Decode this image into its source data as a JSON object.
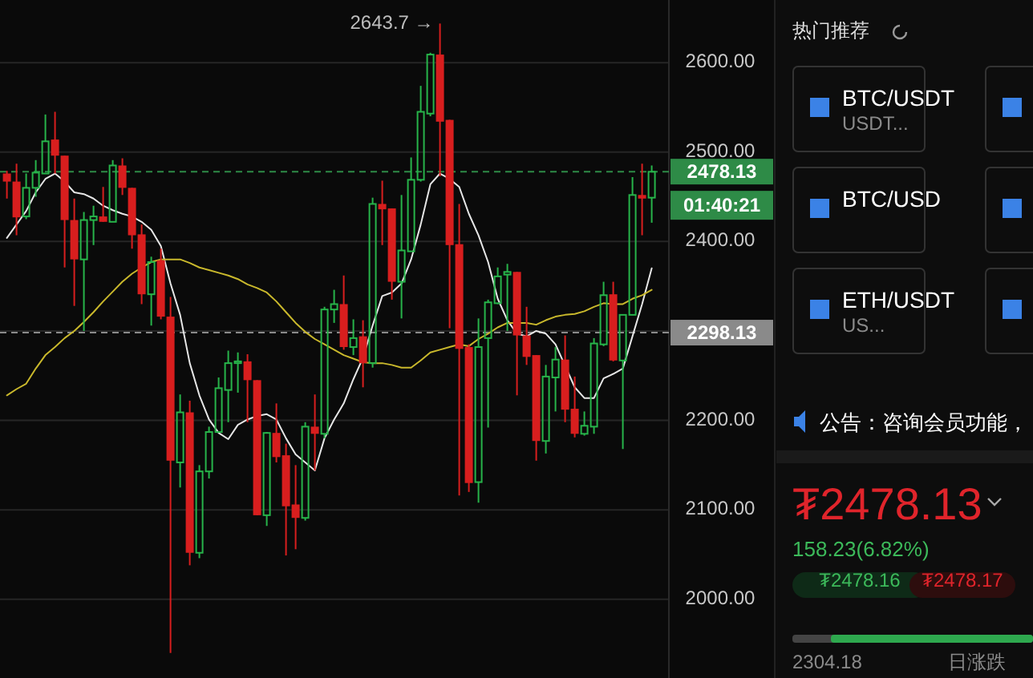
{
  "chart_data": [
    {
      "type": "candlestick",
      "categories": [
        null,
        null,
        null,
        null,
        null,
        null,
        null,
        null,
        null,
        null,
        null,
        null,
        null,
        null,
        null,
        null,
        null,
        null,
        null,
        null,
        null,
        null,
        null,
        null,
        null,
        null,
        null,
        null,
        null,
        null,
        null,
        null,
        null,
        null,
        null,
        null,
        null,
        null,
        null,
        null,
        null,
        null,
        null,
        null,
        null,
        null,
        null,
        null,
        null,
        null,
        null,
        null,
        null,
        null,
        null,
        null,
        null,
        null,
        null,
        null,
        null,
        null,
        null,
        null,
        null,
        null,
        null,
        null
      ],
      "ohlc": [
        [
          2476,
          2479,
          2448,
          2467
        ],
        [
          2467,
          2487,
          2407,
          2427
        ],
        [
          2428,
          2476,
          2425,
          2460
        ],
        [
          2460,
          2491,
          2450,
          2477
        ],
        [
          2476,
          2542,
          2476,
          2512
        ],
        [
          2514,
          2545,
          2476,
          2496
        ],
        [
          2496,
          2496,
          2371,
          2424
        ],
        [
          2424,
          2448,
          2328,
          2380
        ],
        [
          2380,
          2433,
          2300,
          2424
        ],
        [
          2424,
          2440,
          2396,
          2428
        ],
        [
          2428,
          2461,
          2422,
          2422
        ],
        [
          2422,
          2491,
          2422,
          2485
        ],
        [
          2485,
          2493,
          2452,
          2460
        ],
        [
          2460,
          2460,
          2392,
          2407
        ],
        [
          2408,
          2419,
          2330,
          2341
        ],
        [
          2341,
          2383,
          2306,
          2377
        ],
        [
          2379,
          2392,
          2313,
          2316
        ],
        [
          2316,
          2338,
          1940,
          2155
        ],
        [
          2153,
          2229,
          2125,
          2209
        ],
        [
          2209,
          2222,
          2038,
          2052
        ],
        [
          2052,
          2150,
          2046,
          2143
        ],
        [
          2143,
          2193,
          2135,
          2187
        ],
        [
          2187,
          2248,
          2187,
          2236
        ],
        [
          2234,
          2278,
          2198,
          2264
        ],
        [
          2264,
          2276,
          2231,
          2266
        ],
        [
          2266,
          2274,
          2198,
          2245
        ],
        [
          2245,
          2245,
          2094,
          2094
        ],
        [
          2094,
          2187,
          2082,
          2186
        ],
        [
          2186,
          2219,
          2153,
          2159
        ],
        [
          2161,
          2174,
          2049,
          2104
        ],
        [
          2106,
          2150,
          2056,
          2091
        ],
        [
          2091,
          2198,
          2088,
          2193
        ],
        [
          2193,
          2229,
          2144,
          2185
        ],
        [
          2185,
          2327,
          2180,
          2324
        ],
        [
          2324,
          2346,
          2309,
          2330
        ],
        [
          2330,
          2362,
          2279,
          2282
        ],
        [
          2282,
          2313,
          2273,
          2292
        ],
        [
          2294,
          2312,
          2237,
          2264
        ],
        [
          2264,
          2449,
          2259,
          2442
        ],
        [
          2442,
          2468,
          2396,
          2436
        ],
        [
          2437,
          2437,
          2335,
          2355
        ],
        [
          2355,
          2452,
          2314,
          2390
        ],
        [
          2389,
          2494,
          2389,
          2469
        ],
        [
          2469,
          2574,
          2467,
          2545
        ],
        [
          2543,
          2611,
          2540,
          2609
        ],
        [
          2609,
          2643.7,
          2473,
          2534
        ],
        [
          2536,
          2536,
          2303,
          2396
        ],
        [
          2397,
          2442,
          2116,
          2280
        ],
        [
          2282,
          2285,
          2120,
          2130
        ],
        [
          2131,
          2314,
          2108,
          2282
        ],
        [
          2292,
          2335,
          2192,
          2332
        ],
        [
          2331,
          2371,
          2330,
          2361
        ],
        [
          2363,
          2375,
          2300,
          2366
        ],
        [
          2366,
          2366,
          2228,
          2295
        ],
        [
          2295,
          2327,
          2262,
          2271
        ],
        [
          2273,
          2273,
          2155,
          2177
        ],
        [
          2177,
          2262,
          2163,
          2249
        ],
        [
          2248,
          2282,
          2210,
          2268
        ],
        [
          2268,
          2295,
          2198,
          2212
        ],
        [
          2213,
          2249,
          2181,
          2185
        ],
        [
          2185,
          2210,
          2183,
          2194
        ],
        [
          2193,
          2292,
          2185,
          2286
        ],
        [
          2285,
          2355,
          2283,
          2340
        ],
        [
          2341,
          2355,
          2266,
          2267
        ],
        [
          2267,
          2318,
          2168,
          2318
        ],
        [
          2318,
          2472,
          2318,
          2452
        ],
        [
          2452,
          2487,
          2407,
          2448
        ],
        [
          2449,
          2485,
          2421,
          2478
        ]
      ],
      "colors": [
        "#d81e1e",
        "#d81e1e",
        "#27b44a",
        "#27b44a",
        "#27b44a",
        "#d81e1e",
        "#d81e1e",
        "#d81e1e",
        "#27b44a",
        "#27b44a",
        "#d81e1e",
        "#27b44a",
        "#d81e1e",
        "#d81e1e",
        "#d81e1e",
        "#27b44a",
        "#d81e1e",
        "#d81e1e",
        "#27b44a",
        "#d81e1e",
        "#27b44a",
        "#27b44a",
        "#27b44a",
        "#27b44a",
        "#27b44a",
        "#d81e1e",
        "#d81e1e",
        "#27b44a",
        "#d81e1e",
        "#d81e1e",
        "#d81e1e",
        "#27b44a",
        "#d81e1e",
        "#27b44a",
        "#27b44a",
        "#d81e1e",
        "#27b44a",
        "#d81e1e",
        "#27b44a",
        "#d81e1e",
        "#d81e1e",
        "#27b44a",
        "#27b44a",
        "#27b44a",
        "#27b44a",
        "#d81e1e",
        "#d81e1e",
        "#d81e1e",
        "#d81e1e",
        "#27b44a",
        "#27b44a",
        "#27b44a",
        "#27b44a",
        "#d81e1e",
        "#d81e1e",
        "#d81e1e",
        "#27b44a",
        "#27b44a",
        "#d81e1e",
        "#d81e1e",
        "#27b44a",
        "#27b44a",
        "#27b44a",
        "#d81e1e",
        "#27b44a",
        "#27b44a",
        "#d81e1e",
        "#27b44a"
      ],
      "series": [
        {
          "type": "line",
          "color": "#e6e6e6",
          "values": [
            2404,
            2419,
            2434,
            2455,
            2470,
            2476,
            2467,
            2455,
            2453,
            2448,
            2440,
            2435,
            2431,
            2428,
            2422,
            2413,
            2395,
            2353,
            2318,
            2264,
            2228,
            2201,
            2186,
            2179,
            2195,
            2201,
            2205,
            2207,
            2201,
            2180,
            2162,
            2153,
            2144,
            2180,
            2201,
            2219,
            2246,
            2270,
            2306,
            2339,
            2343,
            2353,
            2380,
            2419,
            2464,
            2476,
            2470,
            2461,
            2431,
            2407,
            2377,
            2336,
            2312,
            2297,
            2294,
            2300,
            2297,
            2285,
            null,
            2237,
            2225,
            2225,
            2247,
            2252,
            2258,
            2294,
            2330,
            2370
          ]
        },
        {
          "type": "line",
          "color": "#c9b82c",
          "values": [
            2228,
            2235,
            2241,
            2258,
            2273,
            2282,
            2292,
            2300,
            2310,
            2321,
            2333,
            2344,
            2355,
            2364,
            2371,
            2377,
            2380,
            2380,
            2380,
            2376,
            2371,
            2368,
            2365,
            2362,
            2358,
            2352,
            2348,
            2343,
            2333,
            2321,
            2309,
            2299,
            2291,
            2285,
            2279,
            2273,
            2269,
            2265,
            2264,
            2264,
            2262,
            2259,
            2259,
            2267,
            2276,
            2279,
            2282,
            2285,
            2283,
            2291,
            2297,
            2304,
            2309,
            2309,
            2309,
            2307,
            2312,
            2316,
            2318,
            2319,
            2322,
            2327,
            2331,
            2330,
            2330,
            2336,
            2340,
            2346
          ]
        }
      ],
      "ylim": [
        1912,
        2670
      ],
      "yticks": [
        {
          "value": 2000,
          "label": "2000.00"
        },
        {
          "value": 2100,
          "label": "2100.00"
        },
        {
          "value": 2200,
          "label": "2200.00"
        },
        {
          "value": 2300,
          "label": null
        },
        {
          "value": 2400,
          "label": "2400.00"
        },
        {
          "value": 2500,
          "label": "2500.00"
        },
        {
          "value": 2600,
          "label": "2600.00"
        }
      ],
      "grid": "y",
      "ref_lines": [
        {
          "axis": "y",
          "value": 2478.13,
          "label": "2478.13",
          "color": "#2e8b47",
          "line_style": "dashed"
        },
        {
          "axis": "y",
          "value": 2298.13,
          "label": "2298.13",
          "color": "#8a8a8a",
          "line_style": "dashed"
        }
      ],
      "annotations": [
        "2643.7 →",
        "01:40:21"
      ]
    },
    {
      "type": "other",
      "title": "热门推荐",
      "annotations": [
        "BTC/USDT",
        "USDT...",
        "BTC/USD",
        "ETH/USDT",
        "US...",
        "公告：咨询会员功能，",
        "₮2478.13",
        "158.23(6.82%)",
        "₮2478.16",
        "₮2478.17",
        "2304.18",
        "日涨跌"
      ]
    }
  ]
}
